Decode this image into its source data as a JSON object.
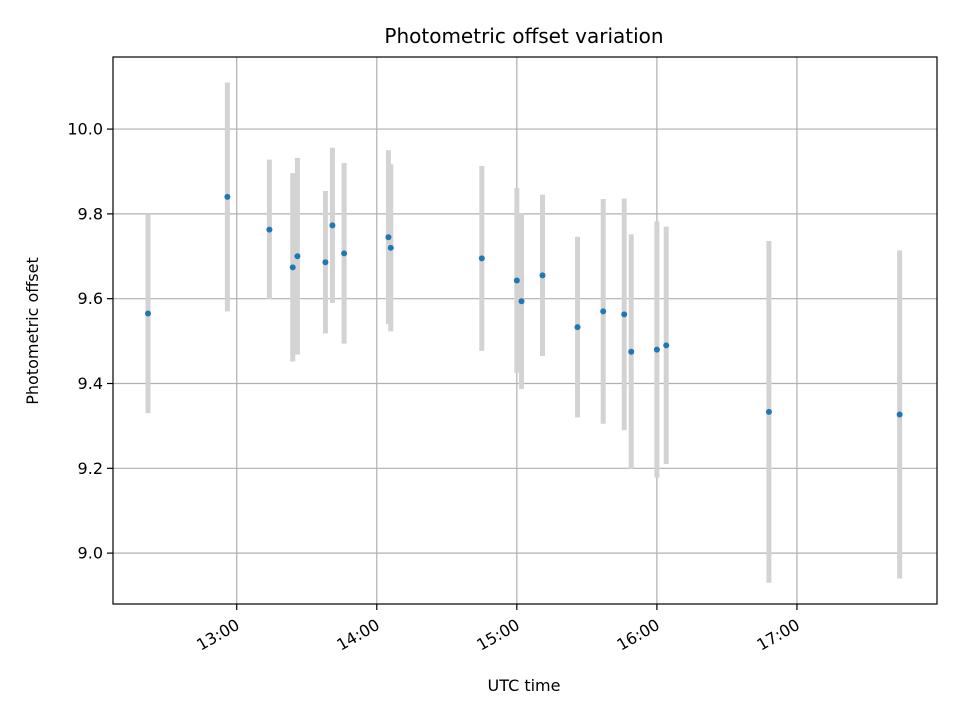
{
  "chart_data": {
    "type": "scatter",
    "title": "Photometric offset variation",
    "xlabel": "UTC time",
    "ylabel": "Photometric offset",
    "grid": true,
    "x_tick_labels": [
      "13:00",
      "14:00",
      "15:00",
      "16:00",
      "17:00"
    ],
    "x_tick_values": [
      "13:00",
      "14:00",
      "15:00",
      "16:00",
      "17:00"
    ],
    "y_ticks": [
      9.0,
      9.2,
      9.4,
      9.6,
      9.8,
      10.0
    ],
    "y_tick_labels": [
      "9.0",
      "9.2",
      "9.4",
      "9.6",
      "9.8",
      "10.0"
    ],
    "xlim": [
      "12:07",
      "18:00"
    ],
    "ylim": [
      8.88,
      10.17
    ],
    "colors": {
      "point": "#1f77b4",
      "errorbar": "#d3d3d3",
      "grid": "#b0b0b0"
    },
    "points": [
      {
        "x": "12:22",
        "y": 9.565,
        "err": 0.235
      },
      {
        "x": "12:56",
        "y": 9.84,
        "err": 0.27
      },
      {
        "x": "13:14",
        "y": 9.763,
        "err": 0.165
      },
      {
        "x": "13:24",
        "y": 9.674,
        "err": 0.222
      },
      {
        "x": "13:26",
        "y": 9.7,
        "err": 0.232
      },
      {
        "x": "13:38",
        "y": 9.686,
        "err": 0.168
      },
      {
        "x": "13:41",
        "y": 9.773,
        "err": 0.183
      },
      {
        "x": "13:46",
        "y": 9.707,
        "err": 0.213
      },
      {
        "x": "14:05",
        "y": 9.745,
        "err": 0.205
      },
      {
        "x": "14:06",
        "y": 9.72,
        "err": 0.197
      },
      {
        "x": "14:45",
        "y": 9.695,
        "err": 0.218
      },
      {
        "x": "15:00",
        "y": 9.643,
        "err": 0.218
      },
      {
        "x": "15:02",
        "y": 9.594,
        "err": 0.207
      },
      {
        "x": "15:11",
        "y": 9.655,
        "err": 0.19
      },
      {
        "x": "15:26",
        "y": 9.533,
        "err": 0.213
      },
      {
        "x": "15:37",
        "y": 9.57,
        "err": 0.265
      },
      {
        "x": "15:46",
        "y": 9.563,
        "err": 0.273
      },
      {
        "x": "15:49",
        "y": 9.475,
        "err": 0.277
      },
      {
        "x": "16:00",
        "y": 9.48,
        "err": 0.302
      },
      {
        "x": "16:04",
        "y": 9.49,
        "err": 0.28
      },
      {
        "x": "16:48",
        "y": 9.333,
        "err": 0.403
      },
      {
        "x": "17:44",
        "y": 9.327,
        "err": 0.387
      }
    ]
  }
}
